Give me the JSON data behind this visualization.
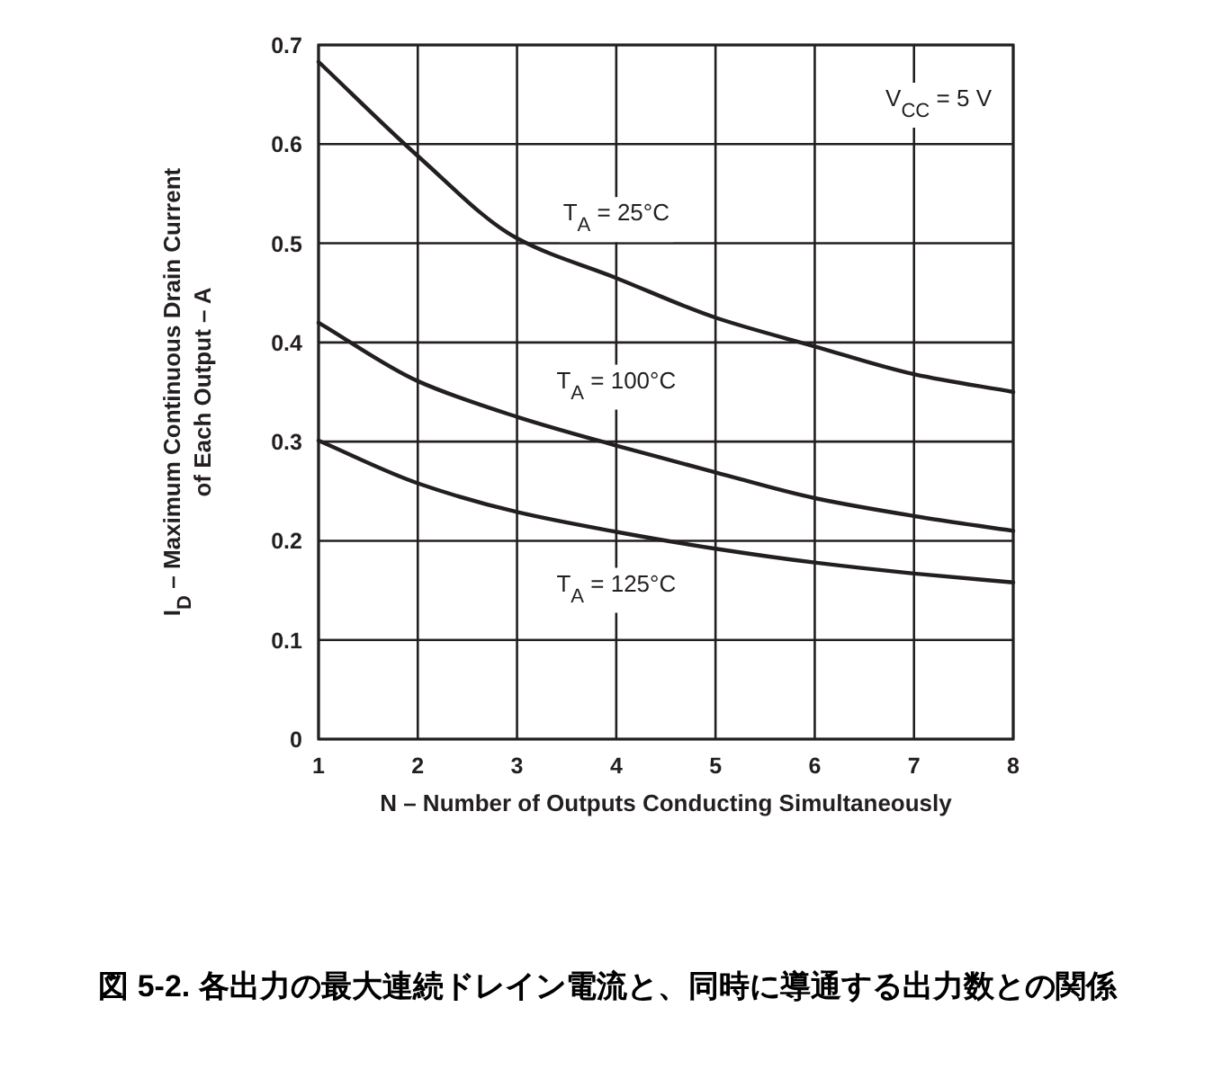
{
  "chart_data": {
    "type": "line",
    "xlabel": "N – Number of Outputs Conducting Simultaneously",
    "ylabel": "I$_{D}$ – Maximum Continuous Drain Current of Each Output – A",
    "x": [
      1,
      2,
      3,
      4,
      5,
      6,
      7,
      8
    ],
    "series": [
      {
        "name": "T$_{A}$ = 25°C",
        "color": "#231f20",
        "values": [
          0.683,
          0.588,
          0.505,
          0.465,
          0.425,
          0.396,
          0.368,
          0.35
        ]
      },
      {
        "name": "T$_{A}$ = 100°C",
        "color": "#231f20",
        "values": [
          0.42,
          0.361,
          0.325,
          0.296,
          0.269,
          0.243,
          0.225,
          0.21
        ]
      },
      {
        "name": "T$_{A}$ = 125°C",
        "color": "#231f20",
        "values": [
          0.301,
          0.258,
          0.229,
          0.209,
          0.192,
          0.178,
          0.167,
          0.158
        ]
      }
    ],
    "xlim": [
      1,
      8
    ],
    "xticks": [
      1,
      2,
      3,
      4,
      5,
      6,
      7,
      8
    ],
    "ylim": [
      0,
      0.7
    ],
    "yticks": [
      0,
      0.1,
      0.2,
      0.3,
      0.4,
      0.5,
      0.6,
      0.7
    ],
    "grid": true,
    "marker": "none",
    "line_style": "solid",
    "annotations": [
      "V$_{CC}$ = 5 V",
      "図 5-2. 各出力の最大連続ドレイン電流と、同時に導通する出力数との関係"
    ]
  }
}
